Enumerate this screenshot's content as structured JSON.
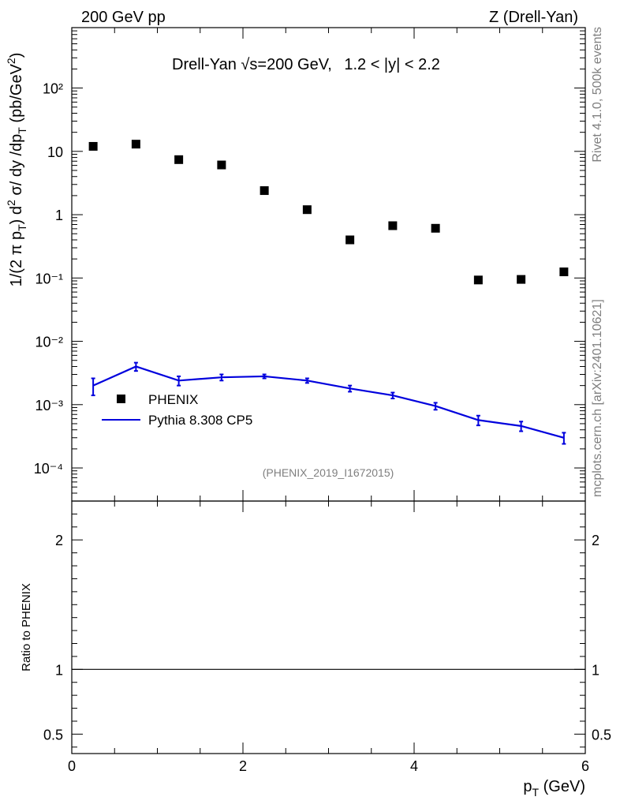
{
  "header": {
    "left": "200 GeV pp",
    "right": "Z (Drell-Yan)"
  },
  "side_labels": {
    "rivet": "Rivet 4.1.0,  500k events",
    "mcplots": "mcplots.cern.ch [arXiv:2401.10621]"
  },
  "chart_data": {
    "type": "scatter",
    "title_prefix": "Drell-Yan √s=200 GeV,",
    "title_cut": "1.2 < |y| < 2.2",
    "watermark": "(PHENIX_2019_I1672015)",
    "ylabel": "1/(2 π pT) d² σ/ dy /dpT (pb/GeV²)",
    "xlabel": "pT (GeV)",
    "ratio_ylabel": "Ratio to PHENIX",
    "x_range": [
      0,
      6.0
    ],
    "y_range": [
      3e-05,
      900
    ],
    "y_scale": "log",
    "ratio_range": [
      0.35,
      2.3
    ],
    "x_ticks": [
      0,
      2,
      4,
      6
    ],
    "y_tick_exponents": [
      -4,
      -3,
      -2,
      -1,
      0,
      1,
      2
    ],
    "y_tick_labels": [
      "10⁻⁴",
      "10⁻³",
      "10⁻²",
      "10⁻¹",
      "1",
      "10",
      "10²"
    ],
    "ratio_ticks": [
      0.5,
      1,
      2
    ],
    "ratio_tick_labels": [
      "0.5",
      "1",
      "2"
    ],
    "legend": [
      "PHENIX",
      "Pythia 8.308 CP5"
    ],
    "series": [
      {
        "name": "PHENIX",
        "color": "#000000",
        "x": [
          0.25,
          0.75,
          1.25,
          1.75,
          2.25,
          2.75,
          3.25,
          3.75,
          4.25,
          4.75,
          5.25,
          5.75
        ],
        "y": [
          12.0,
          13.0,
          7.4,
          6.1,
          2.4,
          1.2,
          0.4,
          0.67,
          0.61,
          0.093,
          0.095,
          0.125
        ]
      },
      {
        "name": "Pythia 8.308 CP5",
        "color": "#0000dd",
        "x": [
          0.25,
          0.75,
          1.25,
          1.75,
          2.25,
          2.75,
          3.25,
          3.75,
          4.25,
          4.75,
          5.25,
          5.75
        ],
        "y": [
          0.002,
          0.004,
          0.0024,
          0.0027,
          0.0028,
          0.0024,
          0.0018,
          0.0014,
          0.00095,
          0.00057,
          0.00046,
          0.0003
        ],
        "err": [
          0.0006,
          0.0006,
          0.0004,
          0.0003,
          0.0002,
          0.0002,
          0.0002,
          0.00015,
          0.00012,
          0.0001,
          8e-05,
          6e-05
        ]
      }
    ],
    "ratio_line": 1
  }
}
